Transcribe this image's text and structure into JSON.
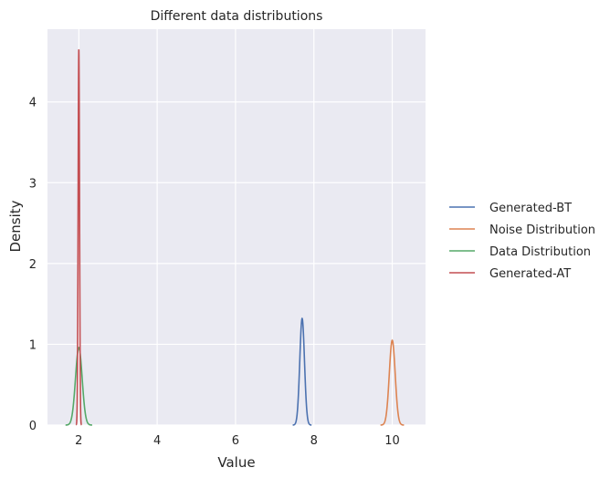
{
  "chart_data": {
    "type": "line",
    "title": "Different data distributions",
    "xlabel": "Value",
    "ylabel": "Density",
    "xlim": [
      1.2,
      10.85
    ],
    "ylim": [
      0,
      4.9
    ],
    "x_ticks": [
      2,
      4,
      6,
      8,
      10
    ],
    "y_ticks": [
      0,
      1,
      2,
      3,
      4
    ],
    "grid": true,
    "background": "#eaeaf2",
    "legend_position": "right",
    "series": [
      {
        "name": "Generated-BT",
        "color": "#4c72b0",
        "mean": 7.7,
        "sd": 0.06,
        "peak": 1.32
      },
      {
        "name": "Noise Distribution",
        "color": "#dd8452",
        "mean": 10.0,
        "sd": 0.075,
        "peak": 1.05
      },
      {
        "name": "Data Distribution",
        "color": "#55a868",
        "mean": 2.0,
        "sd": 0.085,
        "peak": 0.96
      },
      {
        "name": "Generated-AT",
        "color": "#c44e52",
        "mean": 2.0,
        "sd": 0.018,
        "peak": 4.65
      }
    ]
  }
}
